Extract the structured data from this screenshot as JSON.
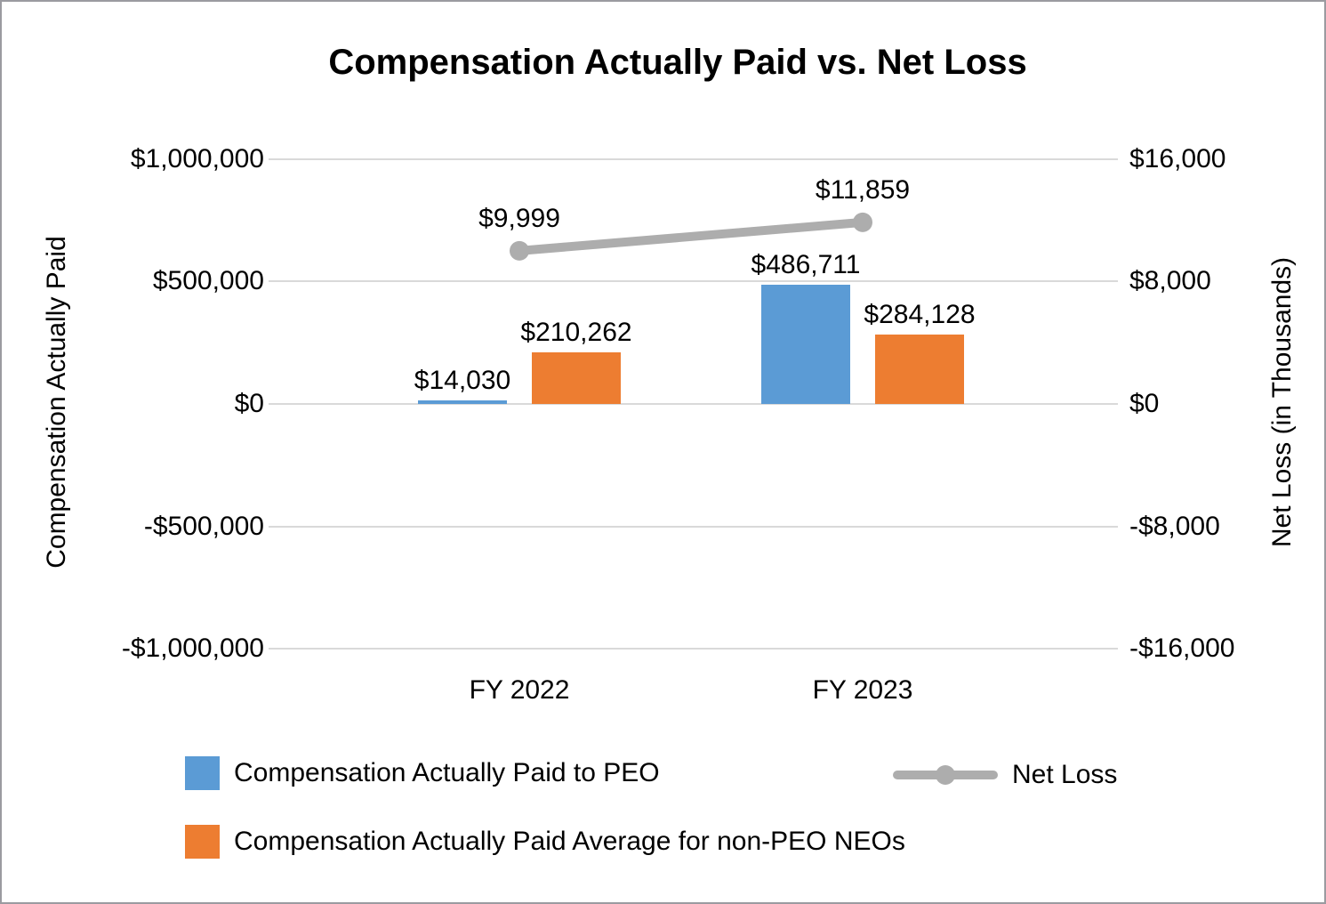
{
  "title": "Compensation Actually Paid vs. Net Loss",
  "chart_data": {
    "type": "bar+line combo",
    "title": "Compensation Actually Paid vs. Net Loss",
    "categories": [
      "FY 2022",
      "FY 2023"
    ],
    "series": [
      {
        "name": "Compensation Actually Paid to PEO",
        "type": "bar",
        "axis": "left",
        "color": "#5B9BD5",
        "values": [
          14030,
          486711
        ],
        "labels": [
          "$14,030",
          "$486,711"
        ]
      },
      {
        "name": "Compensation Actually Paid Average for non-PEO NEOs",
        "type": "bar",
        "axis": "left",
        "color": "#ED7D31",
        "values": [
          210262,
          284128
        ],
        "labels": [
          "$210,262",
          "$284,128"
        ]
      },
      {
        "name": "Net Loss",
        "type": "line",
        "axis": "right",
        "color": "#ADADAD",
        "values": [
          9999,
          11859
        ],
        "labels": [
          "$9,999",
          "$11,859"
        ]
      }
    ],
    "left_axis": {
      "title": "Compensation Actually Paid",
      "tick_labels": [
        "$1,000,000",
        "$500,000",
        "$0",
        "-$500,000",
        "-$1,000,000"
      ],
      "tick_values": [
        1000000,
        500000,
        0,
        -500000,
        -1000000
      ],
      "range": [
        -1000000,
        1000000
      ]
    },
    "right_axis": {
      "title": "Net Loss (in Thousands)",
      "tick_labels": [
        "$16,000",
        "$8,000",
        "$0",
        "-$8,000",
        "-$16,000"
      ],
      "tick_values": [
        16000,
        8000,
        0,
        -8000,
        -16000
      ],
      "range": [
        -16000,
        16000
      ]
    },
    "grid": "horizontal",
    "legend_position": "bottom",
    "colors": {
      "gridline": "#d9d9d9",
      "text": "#000000",
      "border": "#9b9ba0"
    }
  }
}
